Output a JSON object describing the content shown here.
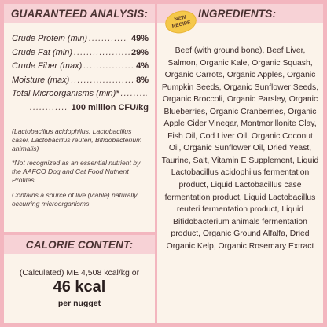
{
  "guaranteed_analysis": {
    "title": "GUARANTEED ANALYSIS:",
    "rows": [
      {
        "label": "Crude Protein (min)",
        "dots": "............",
        "value": "49%"
      },
      {
        "label": "Crude Fat (min)",
        "dots": "....................",
        "value": "29%"
      },
      {
        "label": "Crude Fiber (max)",
        "dots": "...................",
        "value": "4%"
      },
      {
        "label": "Moisture (max)",
        "dots": ".........................",
        "value": "8%"
      }
    ],
    "micro_label": "Total Microorganisms (min)*",
    "micro_dots": ".........",
    "micro_dots2": "............",
    "micro_value": "100 million CFU/kg",
    "note_strains": "(Lactobacillus acidophilus, Lactobacillus casei, Lactobacillus reuteri, Bifidobacterium animalis)",
    "note_aafco": "*Not recognized as an essential nutrient by the AAFCO Dog and Cat Food Nutrient Profiles.",
    "note_live": "Contains a source of live (viable) naturally occurring microorganisms"
  },
  "calorie": {
    "title": "CALORIE CONTENT:",
    "line1": "(Calculated) ME 4,508 kcal/kg or",
    "big": "46 kcal",
    "sub": "per nugget"
  },
  "ingredients": {
    "title": "INGREDIENTS:",
    "badge": "NEW RECIPE",
    "text": "Beef (with ground bone), Beef Liver, Salmon, Organic Kale, Organic Squash, Organic Carrots, Organic Apples, Organic Pumpkin Seeds, Organic Sunflower Seeds, Organic Broccoli, Organic Parsley, Organic Blueberries, Organic Cranberries, Organic Apple Cider Vinegar, Montmorillonite Clay, Fish Oil, Cod Liver Oil, Organic Coconut Oil, Organic Sunflower Oil, Dried Yeast, Taurine, Salt, Vitamin E Supplement, Liquid Lactobacillus acidophilus fermentation product, Liquid Lactobacillus case fermentation product, Liquid Lactobacillus reuteri fermentation product, Liquid Bifidobacterium animals fermentation product, Organic Ground Alfalfa, Dried Organic Kelp, Organic Rosemary Extract"
  },
  "colors": {
    "background": "#f3b6bf",
    "panel": "#fbf3ea",
    "header": "#f7d2d6",
    "badge": "#f5c84a"
  }
}
